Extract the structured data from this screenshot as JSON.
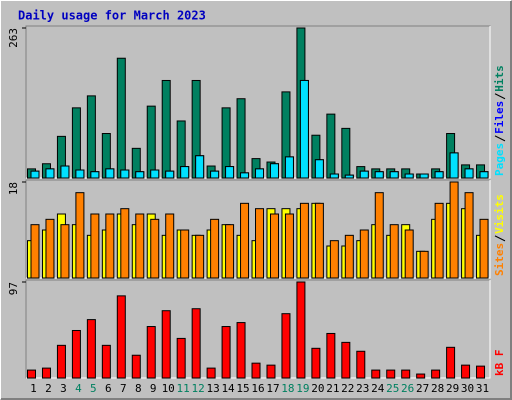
{
  "chart_data": [
    {
      "type": "bar",
      "title": "Daily usage for March 2023",
      "ylim": [
        0,
        263
      ],
      "yticks": [
        263
      ],
      "series": [
        {
          "name": "Hits",
          "color": "#008060",
          "values": [
            16,
            25,
            73,
            123,
            144,
            78,
            210,
            52,
            126,
            171,
            100,
            171,
            21,
            123,
            139,
            34,
            28,
            151,
            263,
            75,
            112,
            87,
            20,
            16,
            16,
            16,
            7,
            16,
            78,
            23,
            23
          ]
        },
        {
          "name": "Files",
          "color": "#0000ff",
          "values": [
            12,
            16,
            21,
            14,
            11,
            16,
            14,
            11,
            14,
            12,
            20,
            39,
            12,
            20,
            9,
            16,
            25,
            37,
            171,
            32,
            7,
            5,
            12,
            11,
            11,
            7,
            7,
            11,
            44,
            16,
            11
          ]
        },
        {
          "name": "Pages",
          "color": "#00e0ff",
          "values": [
            12,
            16,
            21,
            14,
            11,
            16,
            14,
            11,
            14,
            12,
            20,
            39,
            12,
            20,
            9,
            16,
            25,
            37,
            171,
            32,
            7,
            5,
            12,
            11,
            11,
            7,
            7,
            11,
            44,
            16,
            11
          ]
        }
      ]
    },
    {
      "type": "bar",
      "ylim": [
        0,
        18
      ],
      "yticks": [
        18
      ],
      "series": [
        {
          "name": "Visits",
          "color": "#ffff00",
          "values": [
            7,
            9,
            12,
            10,
            8,
            9,
            12,
            10,
            12,
            8,
            9,
            8,
            9,
            10,
            8,
            7,
            13,
            13,
            13,
            14,
            6,
            6,
            7,
            10,
            8,
            10,
            5,
            11,
            14,
            13,
            8
          ]
        },
        {
          "name": "Sites",
          "color": "#ff8000",
          "values": [
            10,
            11,
            10,
            16,
            12,
            12,
            13,
            12,
            11,
            12,
            9,
            8,
            11,
            10,
            14,
            13,
            12,
            12,
            14,
            14,
            7,
            8,
            9,
            16,
            10,
            9,
            5,
            14,
            18,
            16,
            11
          ]
        }
      ]
    },
    {
      "type": "bar",
      "ylim": [
        0,
        97
      ],
      "yticks": [
        97
      ],
      "categories": [
        "1",
        "2",
        "3",
        "4",
        "5",
        "6",
        "7",
        "8",
        "9",
        "10",
        "11",
        "12",
        "13",
        "14",
        "15",
        "16",
        "17",
        "18",
        "19",
        "20",
        "21",
        "22",
        "23",
        "24",
        "25",
        "26",
        "27",
        "28",
        "29",
        "30",
        "31"
      ],
      "category_colors": [
        "#000000",
        "#000000",
        "#000000",
        "#008060",
        "#008060",
        "#000000",
        "#000000",
        "#000000",
        "#000000",
        "#000000",
        "#008060",
        "#008060",
        "#000000",
        "#000000",
        "#000000",
        "#000000",
        "#000000",
        "#008060",
        "#008060",
        "#000000",
        "#000000",
        "#000000",
        "#000000",
        "#000000",
        "#008060",
        "#008060",
        "#000000",
        "#000000",
        "#000000",
        "#000000",
        "#000000"
      ],
      "series": [
        {
          "name": "kB F",
          "color": "#ff0000",
          "values": [
            8,
            10,
            33,
            48,
            59,
            33,
            83,
            23,
            52,
            68,
            40,
            70,
            10,
            52,
            56,
            15,
            13,
            65,
            97,
            30,
            45,
            36,
            27,
            8,
            8,
            8,
            4,
            8,
            31,
            13,
            12
          ]
        }
      ]
    }
  ]
}
